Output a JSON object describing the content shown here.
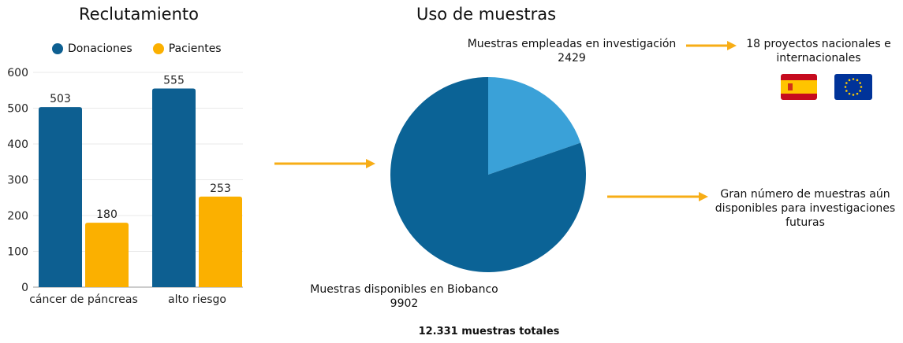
{
  "colors": {
    "donaciones": "#0d5f91",
    "pacientes": "#fbb000",
    "pie_main": "#0b6396",
    "pie_slice": "#3aa1d8",
    "arrow": "#f7ad16"
  },
  "chart_data": [
    {
      "type": "bar",
      "title": "Reclutamiento",
      "categories": [
        "cáncer de páncreas",
        "alto riesgo"
      ],
      "series": [
        {
          "name": "Donaciones",
          "values": [
            503,
            555
          ]
        },
        {
          "name": "Pacientes",
          "values": [
            180,
            253
          ]
        }
      ],
      "ylim": [
        0,
        600
      ],
      "yticks": [
        "0",
        "100",
        "200",
        "300",
        "400",
        "500",
        "600"
      ],
      "grid": true,
      "legend": "top"
    },
    {
      "type": "pie",
      "title": "Uso de muestras",
      "slices": [
        {
          "label": "Muestras empleadas en investigación",
          "value": 2429
        },
        {
          "label": "Muestras disponibles en Biobanco",
          "value": 9902
        }
      ],
      "total_label": "12.331 muestras totales"
    }
  ],
  "pie_labels": {
    "used_name": "Muestras empleadas en investigación",
    "used_value": "2429",
    "available_name": "Muestras disponibles en Biobanco",
    "available_value": "9902",
    "total": "12.331 muestras totales"
  },
  "notes": {
    "projects": "18 proyectos nacionales e internacionales",
    "future": "Gran número de muestras aún disponibles para investigaciones futuras"
  },
  "icons": [
    "spain-flag-icon",
    "eu-flag-icon"
  ]
}
